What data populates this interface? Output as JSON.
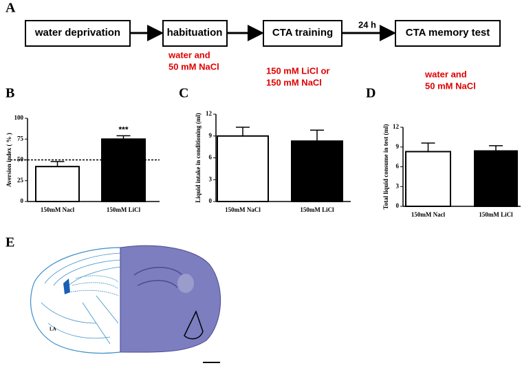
{
  "panels": [
    "A",
    "B",
    "C",
    "D",
    "E"
  ],
  "flow": {
    "nodes": [
      {
        "label": "water deprivation",
        "notes": []
      },
      {
        "label": "habituation",
        "notes": [
          "water and",
          "50 mM NaCl"
        ]
      },
      {
        "label": "CTA training",
        "notes": [
          "150 mM LiCl or",
          "150 mM NaCl"
        ]
      },
      {
        "label": "CTA memory test",
        "notes": [
          "water and",
          "50 mM NaCl"
        ]
      }
    ],
    "edge_label": "24 h"
  },
  "histology": {
    "region_label": "LA"
  },
  "chart_data": [
    {
      "type": "bar",
      "ylabel": "Aversion index ( % )",
      "categories": [
        "150mM Nacl",
        "150mM LiCl"
      ],
      "values": [
        42,
        75
      ],
      "errors": [
        6,
        4
      ],
      "colors": [
        "#ffffff",
        "#000000"
      ],
      "value_annotations": [
        null,
        "***"
      ],
      "reference_line": 50,
      "ylim": [
        0,
        100
      ],
      "yticks": [
        0,
        25,
        50,
        75,
        100
      ]
    },
    {
      "type": "bar",
      "ylabel": "Liquid intake in conditioning (ml)",
      "categories": [
        "150mM NaCl",
        "150mM LiCl"
      ],
      "values": [
        9.0,
        8.3
      ],
      "errors": [
        1.2,
        1.5
      ],
      "colors": [
        "#ffffff",
        "#000000"
      ],
      "ylim": [
        0,
        12
      ],
      "yticks": [
        0,
        3,
        6,
        9,
        12
      ]
    },
    {
      "type": "bar",
      "ylabel": "Total liquid consume in test (ml)",
      "categories": [
        "150mM Nacl",
        "150mM LiCl"
      ],
      "values": [
        8.3,
        8.4
      ],
      "errors": [
        1.3,
        0.8
      ],
      "colors": [
        "#ffffff",
        "#000000"
      ],
      "ylim": [
        0,
        12
      ],
      "yticks": [
        0,
        3,
        6,
        9,
        12
      ]
    }
  ]
}
